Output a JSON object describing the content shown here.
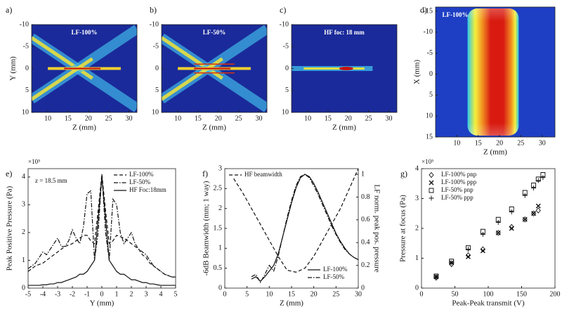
{
  "chart_data": [
    {
      "type": "heatmap",
      "panel_label": "a)",
      "title": "LF-100%",
      "xlabel": "Z (mm)",
      "ylabel": "Y (mm)",
      "xlim": [
        6,
        32
      ],
      "xticks": [
        10,
        15,
        20,
        25,
        30
      ],
      "ylim": [
        10,
        -10
      ],
      "yticks": [
        -10,
        -5,
        0,
        5,
        10
      ]
    },
    {
      "type": "heatmap",
      "panel_label": "b)",
      "title": "LF-50%",
      "xlabel": "Z (mm)",
      "xlim": [
        6,
        32
      ],
      "xticks": [
        10,
        15,
        20,
        25,
        30
      ],
      "ylim": [
        10,
        -10
      ],
      "yticks": [
        -10,
        -5,
        0,
        5,
        10
      ]
    },
    {
      "type": "heatmap",
      "panel_label": "c)",
      "title": "HF foc: 18 mm",
      "xlabel": "Z (mm)",
      "xlim": [
        6,
        32
      ],
      "xticks": [
        10,
        15,
        20,
        25,
        30
      ],
      "ylim": [
        10,
        -10
      ],
      "yticks": [
        -10,
        -5,
        0,
        5,
        10
      ]
    },
    {
      "type": "heatmap",
      "panel_label": "d)",
      "title": "LF-100%",
      "xlabel": "Z (mm)",
      "ylabel": "X (mm)",
      "xlim": [
        5,
        33
      ],
      "xticks": [
        10,
        15,
        20,
        25,
        30
      ],
      "ylim": [
        15,
        -16
      ],
      "yticks": [
        -15,
        -10,
        -5,
        0,
        5,
        10,
        15
      ]
    },
    {
      "type": "line",
      "panel_label": "e)",
      "ylabel": "Peak Positive Pressure (Pa)",
      "xlabel": "Y (mm)",
      "multiplier": "×10⁵",
      "annotation": "z = 18.5 mm",
      "legend": "upper right",
      "xlim": [
        -5,
        5
      ],
      "xticks": [
        -5,
        -4,
        -3,
        -2,
        -1,
        0,
        1,
        2,
        3,
        4,
        5
      ],
      "ylim": [
        0,
        4.3
      ],
      "yticks": [
        0,
        1,
        2,
        3,
        4
      ],
      "x": [
        -5,
        -4.75,
        -4.5,
        -4.25,
        -4,
        -3.75,
        -3.5,
        -3.25,
        -3,
        -2.75,
        -2.5,
        -2.25,
        -2,
        -1.75,
        -1.5,
        -1.25,
        -1,
        -0.75,
        -0.5,
        -0.25,
        0,
        0.25,
        0.5,
        0.75,
        1,
        1.25,
        1.5,
        1.75,
        2,
        2.25,
        2.5,
        2.75,
        3,
        3.25,
        3.5,
        3.75,
        4,
        4.25,
        4.5,
        4.75,
        5
      ],
      "series": [
        {
          "name": "LF-100%",
          "color": "#111111",
          "dash": "dashed",
          "values": [
            0.6,
            0.7,
            0.8,
            0.85,
            0.9,
            1.0,
            1.1,
            1.2,
            1.3,
            1.4,
            1.5,
            1.55,
            1.6,
            1.7,
            1.8,
            1.9,
            1.9,
            1.7,
            1.6,
            2.8,
            4.1,
            2.8,
            1.6,
            1.7,
            1.9,
            1.85,
            1.8,
            1.7,
            1.6,
            1.5,
            1.4,
            1.2,
            1.1,
            0.9,
            0.8,
            0.7,
            0.6,
            0.5,
            0.45,
            0.4,
            0.4
          ]
        },
        {
          "name": "LF-50%",
          "color": "#111111",
          "dash": "dashdot",
          "values": [
            0.7,
            0.8,
            0.9,
            1.1,
            1.3,
            1.2,
            1.4,
            1.6,
            1.8,
            1.5,
            1.5,
            1.7,
            2.1,
            1.8,
            1.6,
            2.2,
            3.4,
            3.5,
            1.0,
            2.0,
            4.1,
            2.0,
            1.0,
            3.2,
            3.0,
            2.0,
            1.6,
            1.8,
            2.0,
            1.6,
            1.4,
            1.3,
            1.2,
            1.0,
            0.8,
            0.7,
            0.6,
            0.5,
            0.45,
            0.4,
            0.4
          ]
        },
        {
          "name": "HF Foc:18mm",
          "color": "#111111",
          "dash": "solid",
          "values": [
            0.1,
            0.1,
            0.1,
            0.1,
            0.12,
            0.12,
            0.15,
            0.15,
            0.2,
            0.2,
            0.25,
            0.3,
            0.35,
            0.4,
            0.5,
            0.5,
            0.6,
            0.8,
            1.0,
            2.5,
            4.0,
            2.5,
            1.0,
            0.8,
            0.6,
            0.5,
            0.5,
            0.4,
            0.3,
            0.3,
            0.25,
            0.2,
            0.2,
            0.15,
            0.15,
            0.12,
            0.1,
            0.1,
            0.1,
            0.1,
            0.1
          ]
        }
      ]
    },
    {
      "type": "line",
      "panel_label": "f)",
      "ylabel": "-6dB Beamwidth (mm; 1 way)",
      "y2label": "LF norm. peak pos. pressure",
      "xlabel": "Z (mm)",
      "legend": "lower right",
      "xlim": [
        0,
        30
      ],
      "xticks": [
        0,
        5,
        10,
        15,
        20,
        25,
        30
      ],
      "ylim": [
        0,
        3
      ],
      "yticks": [
        0,
        0.5,
        1,
        1.5,
        2,
        2.5,
        3
      ],
      "y2lim": [
        0,
        1.05
      ],
      "y2ticks": [
        0,
        0.2,
        0.4,
        0.6,
        0.8,
        1
      ],
      "series": [
        {
          "name": "HF beamwidth",
          "color": "#111111",
          "dash": "dashed",
          "legend": "upper left",
          "x": [
            2,
            4,
            6,
            8,
            10,
            12,
            14,
            16,
            18,
            20,
            22,
            24,
            26,
            28,
            30
          ],
          "values": [
            2.75,
            2.4,
            2.0,
            1.6,
            1.2,
            0.8,
            0.45,
            0.4,
            0.5,
            0.8,
            1.2,
            1.6,
            2.0,
            2.5,
            3.0
          ]
        },
        {
          "name": "LF-100%",
          "color": "#111111",
          "dash": "solid",
          "axis": "y2",
          "x": [
            6,
            7,
            8,
            9,
            10,
            11,
            12,
            13,
            14,
            15,
            16,
            17,
            18,
            19,
            20,
            21,
            22,
            23,
            24,
            25,
            26,
            27,
            28,
            29,
            30
          ],
          "values": [
            0.08,
            0.1,
            0.06,
            0.1,
            0.15,
            0.2,
            0.3,
            0.45,
            0.6,
            0.75,
            0.88,
            0.97,
            1.0,
            0.98,
            0.92,
            0.84,
            0.75,
            0.66,
            0.57,
            0.48,
            0.41,
            0.35,
            0.3,
            0.27,
            0.25
          ]
        },
        {
          "name": "LF-50%",
          "color": "#111111",
          "dash": "dashdot",
          "axis": "y2",
          "x": [
            6,
            7,
            8,
            9,
            10,
            11,
            12,
            13,
            14,
            15,
            16,
            17,
            18,
            19,
            20,
            21,
            22,
            23,
            24,
            25,
            26,
            27,
            28,
            29,
            30
          ],
          "values": [
            0.1,
            0.12,
            0.05,
            0.12,
            0.2,
            0.15,
            0.28,
            0.45,
            0.62,
            0.77,
            0.9,
            0.98,
            1.0,
            0.97,
            0.9,
            0.82,
            0.73,
            0.64,
            0.55,
            0.47,
            0.4,
            0.34,
            0.3,
            0.27,
            0.25
          ]
        }
      ]
    },
    {
      "type": "scatter",
      "panel_label": "g)",
      "ylabel": "Pressure at focus (Pa)",
      "xlabel": "Peak-Peak transmit (V)",
      "multiplier": "×10⁵",
      "legend": "upper left",
      "xlim": [
        0,
        200
      ],
      "xticks": [
        0,
        50,
        100,
        150,
        200
      ],
      "ylim": [
        0,
        4
      ],
      "yticks": [
        0,
        1,
        2,
        3,
        4
      ],
      "series": [
        {
          "name": "LF-100% pnp",
          "color": "#111111",
          "marker": "diamond",
          "x": [
            22,
            45,
            70,
            92,
            115,
            135,
            155,
            168,
            175
          ],
          "values": [
            0.35,
            0.8,
            1.1,
            1.3,
            1.85,
            2.05,
            2.3,
            2.5,
            2.6
          ]
        },
        {
          "name": "LF-100% ppp",
          "color": "#111111",
          "marker": "x",
          "x": [
            22,
            45,
            70,
            92,
            115,
            135,
            155,
            168,
            175
          ],
          "values": [
            0.38,
            0.85,
            1.05,
            1.25,
            1.85,
            2.0,
            2.3,
            2.5,
            2.75
          ]
        },
        {
          "name": "LF-50% pnp",
          "color": "#111111",
          "marker": "square",
          "x": [
            22,
            45,
            70,
            92,
            115,
            135,
            155,
            168,
            175,
            182
          ],
          "values": [
            0.4,
            0.9,
            1.35,
            1.9,
            2.3,
            2.65,
            3.2,
            3.45,
            3.65,
            3.8
          ]
        },
        {
          "name": "LF-50% ppp",
          "color": "#111111",
          "marker": "plus",
          "x": [
            22,
            45,
            70,
            92,
            115,
            135,
            155,
            168,
            175,
            182
          ],
          "values": [
            0.38,
            0.85,
            1.3,
            1.8,
            2.2,
            2.55,
            3.1,
            3.35,
            3.6,
            3.7
          ]
        }
      ]
    }
  ]
}
